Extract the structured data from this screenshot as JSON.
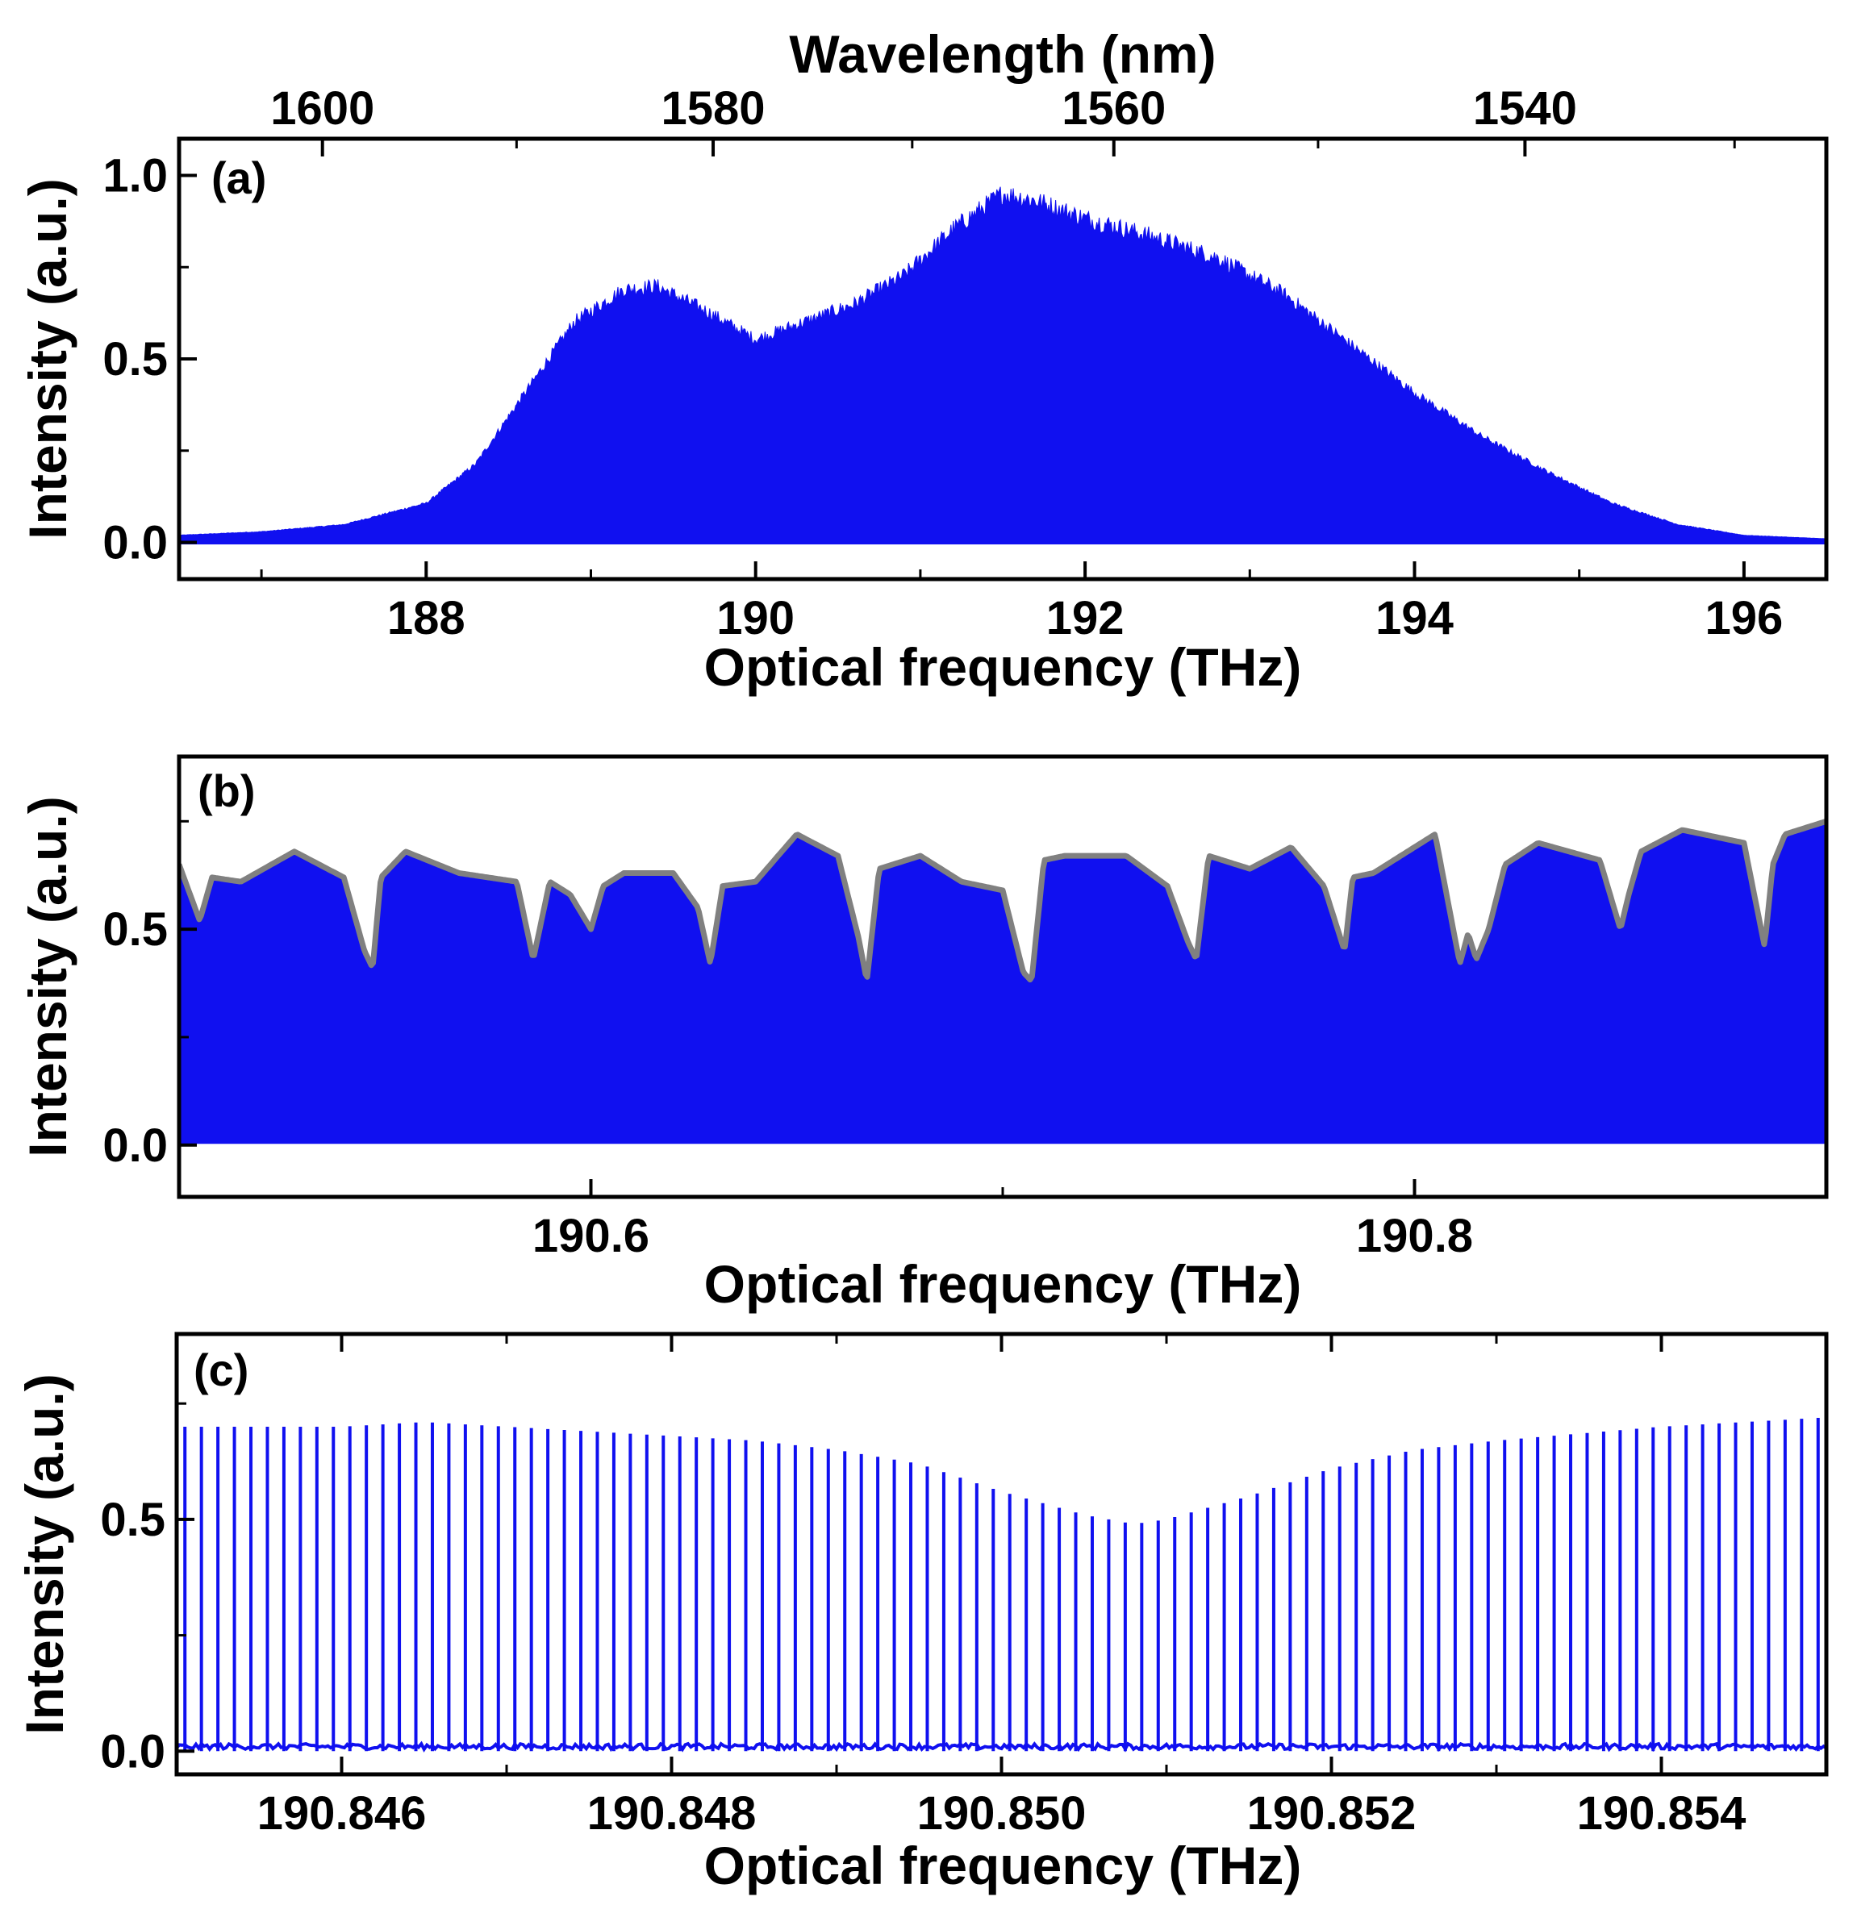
{
  "chart_data": [
    {
      "panel": "(a)",
      "type": "area",
      "top_axis": {
        "label": "Wavelength (nm)",
        "ticks": [
          {
            "value": 1600,
            "label": "1600"
          },
          {
            "value": 1580,
            "label": "1580"
          },
          {
            "value": 1560,
            "label": "1560"
          },
          {
            "value": 1540,
            "label": "1540"
          }
        ]
      },
      "xlabel": "Optical frequency (THz)",
      "ylabel": "Intensity (a.u.)",
      "xlim": [
        186.5,
        196.5
      ],
      "ylim": [
        -0.1,
        1.1
      ],
      "x_ticks": [
        {
          "value": 188,
          "label": "188"
        },
        {
          "value": 190,
          "label": "190"
        },
        {
          "value": 192,
          "label": "192"
        },
        {
          "value": 194,
          "label": "194"
        },
        {
          "value": 196,
          "label": "196"
        }
      ],
      "y_ticks": [
        {
          "value": 0.0,
          "label": "0.0"
        },
        {
          "value": 0.5,
          "label": "0.5"
        },
        {
          "value": 1.0,
          "label": "1.0"
        }
      ],
      "series": [
        {
          "name": "spectrum envelope",
          "color": "#1010f0",
          "x": [
            186.5,
            187.0,
            187.5,
            188.0,
            188.3,
            188.6,
            188.9,
            189.2,
            189.4,
            189.7,
            190.0,
            190.3,
            190.6,
            190.9,
            191.2,
            191.5,
            191.7,
            192.0,
            192.4,
            192.8,
            193.2,
            193.6,
            194.0,
            194.4,
            194.8,
            195.2,
            195.6,
            196.0,
            196.5
          ],
          "values": [
            0.02,
            0.03,
            0.05,
            0.11,
            0.22,
            0.42,
            0.62,
            0.71,
            0.72,
            0.65,
            0.57,
            0.62,
            0.67,
            0.75,
            0.88,
            0.98,
            0.96,
            0.91,
            0.86,
            0.8,
            0.7,
            0.56,
            0.42,
            0.3,
            0.2,
            0.11,
            0.05,
            0.02,
            0.01
          ]
        }
      ]
    },
    {
      "panel": "(b)",
      "type": "area",
      "xlabel": "Optical frequency (THz)",
      "ylabel": "Intensity (a.u.)",
      "xlim": [
        190.5,
        190.9
      ],
      "ylim": [
        -0.12,
        0.9
      ],
      "x_ticks": [
        {
          "value": 190.6,
          "label": "190.6"
        },
        {
          "value": 190.8,
          "label": "190.8"
        }
      ],
      "y_ticks": [
        {
          "value": 0.0,
          "label": "0.0"
        },
        {
          "value": 0.5,
          "label": "0.5"
        }
      ],
      "envelope_color": "#808080",
      "fill_color": "#1010f0",
      "series": [
        {
          "name": "spectrum envelope",
          "x": [
            190.5,
            190.505,
            190.508,
            190.515,
            190.528,
            190.54,
            190.545,
            190.547,
            190.549,
            190.555,
            190.568,
            190.582,
            190.586,
            190.59,
            190.595,
            190.6,
            190.603,
            190.608,
            190.62,
            190.626,
            190.629,
            190.632,
            190.64,
            190.65,
            190.66,
            190.665,
            190.667,
            190.67,
            190.68,
            190.69,
            190.7,
            190.705,
            190.707,
            190.71,
            190.715,
            190.73,
            190.74,
            190.745,
            190.747,
            190.75,
            190.76,
            190.77,
            190.778,
            190.783,
            190.785,
            190.79,
            190.805,
            190.811,
            190.813,
            190.815,
            190.818,
            190.822,
            190.83,
            190.845,
            190.85,
            190.852,
            190.855,
            190.865,
            190.88,
            190.885,
            190.887,
            190.89,
            190.9
          ],
          "values": [
            0.65,
            0.52,
            0.62,
            0.61,
            0.68,
            0.62,
            0.45,
            0.41,
            0.62,
            0.68,
            0.63,
            0.61,
            0.43,
            0.61,
            0.58,
            0.5,
            0.6,
            0.63,
            0.63,
            0.55,
            0.42,
            0.6,
            0.61,
            0.72,
            0.67,
            0.48,
            0.38,
            0.64,
            0.67,
            0.61,
            0.59,
            0.4,
            0.38,
            0.66,
            0.67,
            0.67,
            0.6,
            0.47,
            0.43,
            0.67,
            0.64,
            0.69,
            0.6,
            0.45,
            0.62,
            0.63,
            0.72,
            0.42,
            0.49,
            0.43,
            0.5,
            0.65,
            0.7,
            0.66,
            0.5,
            0.58,
            0.68,
            0.73,
            0.7,
            0.46,
            0.65,
            0.72,
            0.75
          ]
        }
      ]
    },
    {
      "panel": "(c)",
      "type": "line",
      "xlabel": "Optical frequency (THz)",
      "ylabel": "Intensity (a.u.)",
      "xlim": [
        190.845,
        190.855
      ],
      "ylim": [
        -0.05,
        0.9
      ],
      "x_ticks": [
        {
          "value": 190.846,
          "label": "190.846"
        },
        {
          "value": 190.848,
          "label": "190.848"
        },
        {
          "value": 190.85,
          "label": "190.850"
        },
        {
          "value": 190.852,
          "label": "190.852"
        },
        {
          "value": 190.854,
          "label": "190.854"
        }
      ],
      "y_ticks": [
        {
          "value": 0.0,
          "label": "0.0"
        },
        {
          "value": 0.5,
          "label": "0.5"
        }
      ],
      "comb_line_count": 100,
      "baseline": 0.01,
      "series": [
        {
          "name": "comb envelope",
          "color": "#1010f0",
          "x": [
            190.845,
            190.846,
            190.8465,
            190.847,
            190.848,
            190.8485,
            190.849,
            190.8495,
            190.85,
            190.8505,
            190.8508,
            190.851,
            190.8515,
            190.852,
            190.8525,
            190.853,
            190.854,
            190.855
          ],
          "values": [
            0.7,
            0.7,
            0.71,
            0.7,
            0.68,
            0.67,
            0.65,
            0.62,
            0.56,
            0.51,
            0.49,
            0.5,
            0.55,
            0.61,
            0.65,
            0.67,
            0.7,
            0.72
          ]
        }
      ]
    }
  ]
}
